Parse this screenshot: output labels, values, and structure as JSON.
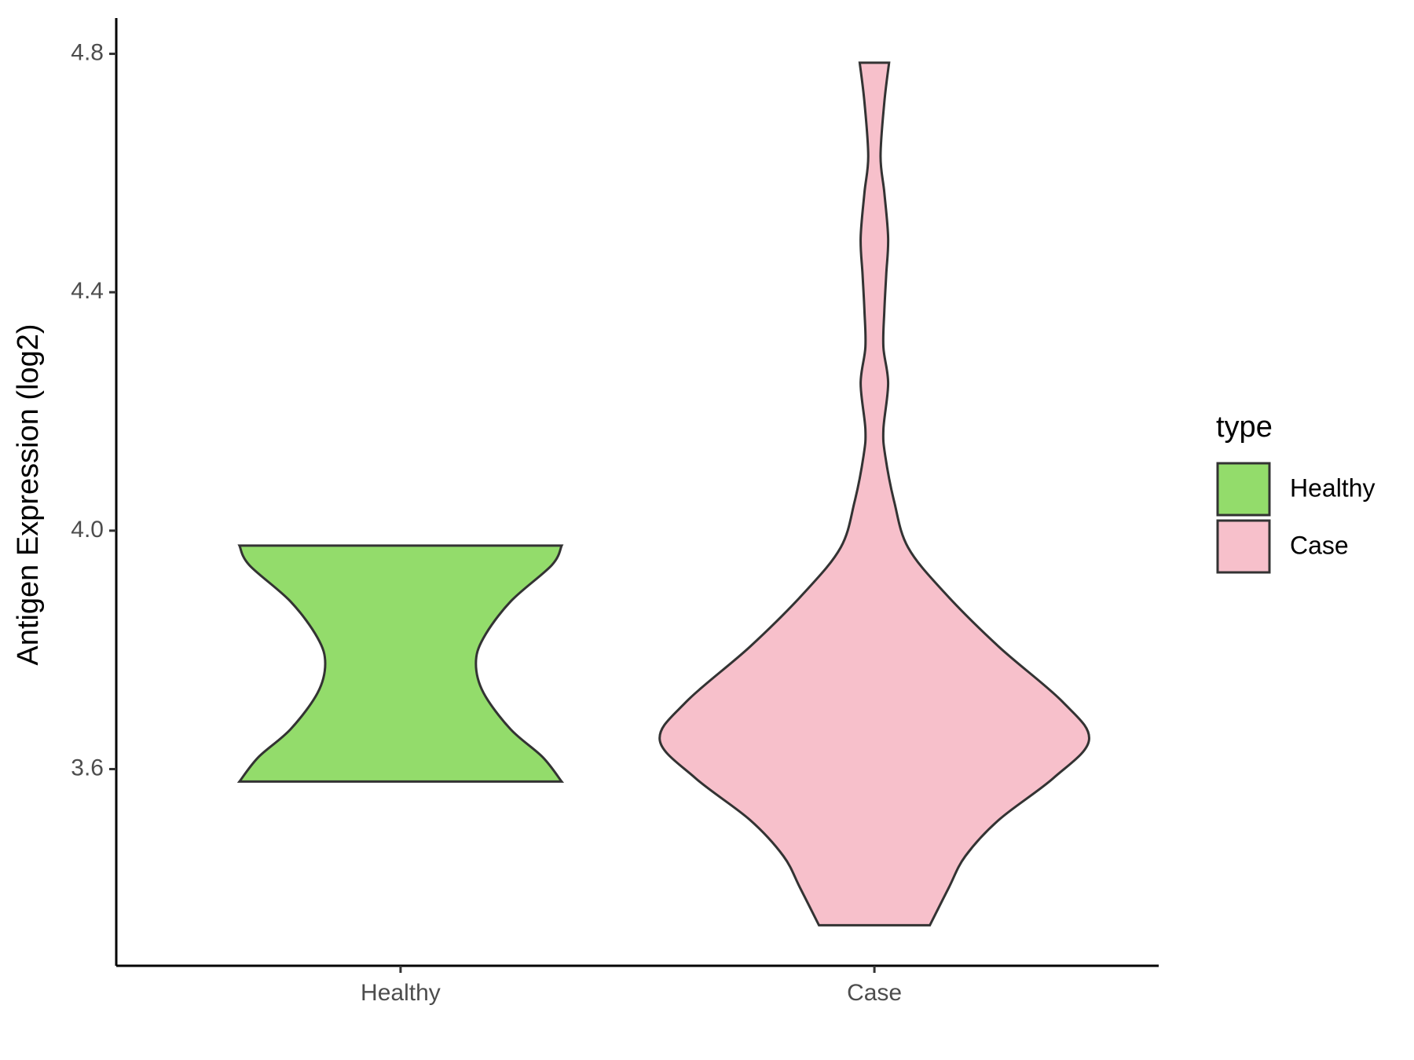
{
  "chart_data": {
    "type": "violin",
    "ylabel": "Antigen Expression (log2)",
    "categories": [
      "Healthy",
      "Case"
    ],
    "legend_title": "type",
    "legend": "right",
    "ylim": [
      3.27,
      4.86
    ],
    "yticks": [
      {
        "value": 3.6,
        "label": "3.6"
      },
      {
        "value": 4.0,
        "label": "4.0"
      },
      {
        "value": 4.4,
        "label": "4.4"
      },
      {
        "value": 4.8,
        "label": "4.8"
      }
    ],
    "series": [
      {
        "name": "Healthy",
        "color": "#93dc6b",
        "y": [
          3.579,
          3.62,
          3.667,
          3.728,
          3.777,
          3.82,
          3.881,
          3.942,
          3.975
        ],
        "width": [
          0.34,
          0.3,
          0.232,
          0.175,
          0.159,
          0.175,
          0.232,
          0.319,
          0.34
        ]
      },
      {
        "name": "Case",
        "color": "#f7c0cb",
        "y": [
          3.338,
          3.401,
          3.454,
          3.515,
          3.585,
          3.649,
          3.713,
          3.805,
          3.896,
          3.972,
          4.048,
          4.125,
          4.17,
          4.247,
          4.308,
          4.369,
          4.43,
          4.491,
          4.567,
          4.628,
          4.719,
          4.785
        ],
        "width": [
          0.117,
          0.157,
          0.192,
          0.263,
          0.378,
          0.453,
          0.397,
          0.263,
          0.148,
          0.071,
          0.042,
          0.023,
          0.019,
          0.029,
          0.019,
          0.021,
          0.025,
          0.029,
          0.021,
          0.013,
          0.021,
          0.031
        ]
      }
    ]
  }
}
